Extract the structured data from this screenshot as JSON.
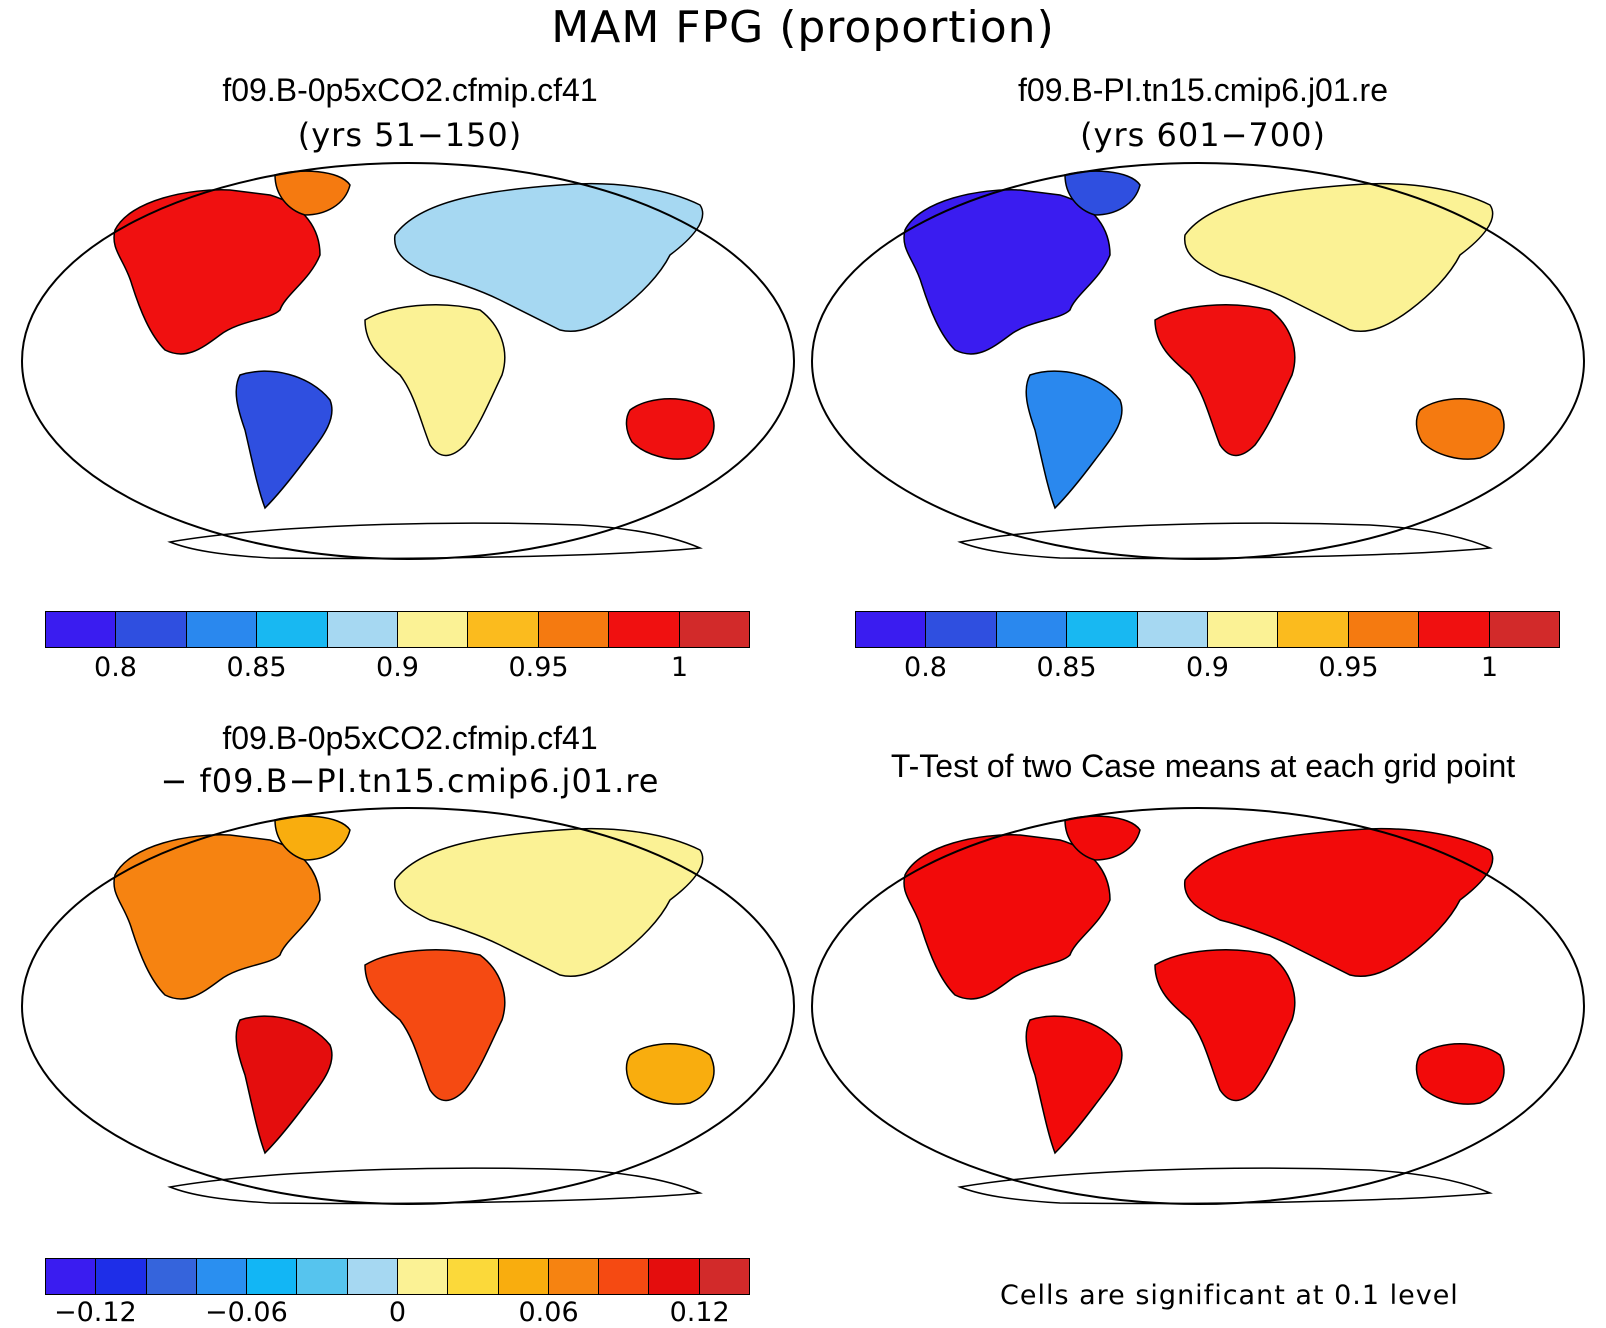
{
  "figure": {
    "title": "MAM FPG (proportion)"
  },
  "panels": {
    "top_left": {
      "title": "f09.B-0p5xCO2.cfmip.cf41",
      "subtitle": "(yrs 51−150)"
    },
    "top_right": {
      "title": "f09.B-PI.tn15.cmip6.j01.re",
      "subtitle": "(yrs 601−700)"
    },
    "bottom_left": {
      "title": "f09.B-0p5xCO2.cfmip.cf41",
      "subtitle": "− f09.B−PI.tn15.cmip6.j01.re"
    },
    "bottom_right": {
      "title": "T-Test of two Case means at each grid point",
      "note": "Cells are significant at 0.1 level"
    }
  },
  "colorbars": {
    "absolute": {
      "colors": [
        "#3a1cf0",
        "#2f4fe0",
        "#2a88ee",
        "#18b8f2",
        "#a6d8f2",
        "#fbf295",
        "#fbbb1e",
        "#f57a10",
        "#f01010",
        "#d22a2a"
      ],
      "tick_labels": [
        "0.8",
        "0.85",
        "0.9",
        "0.95",
        "1"
      ]
    },
    "difference": {
      "colors": [
        "#3a1cf0",
        "#1e2ee8",
        "#3564dc",
        "#2a8ff0",
        "#12b6f5",
        "#56c4ee",
        "#a6d8f2",
        "#fbf295",
        "#fbd93a",
        "#f9ad0e",
        "#f68311",
        "#f54a12",
        "#e40d0d",
        "#d22a2a"
      ],
      "tick_labels": [
        "−0.12",
        "−0.06",
        "0",
        "0.06",
        "0.12"
      ]
    }
  },
  "map_colors": {
    "top_left": [
      "#f01010",
      "#f57a10",
      "#2f4fe0",
      "#a6d8f2",
      "#fbf295",
      "#f01010"
    ],
    "top_right": [
      "#3a1cf0",
      "#2f4fe0",
      "#2a88ee",
      "#fbf295",
      "#f01010",
      "#f57a10"
    ],
    "bottom_left": [
      "#f68311",
      "#f9ad0e",
      "#e40d0d",
      "#fbf295",
      "#f54a12",
      "#f9ad0e"
    ],
    "bottom_right": [
      "#f20a0a",
      "#f20a0a",
      "#f20a0a",
      "#f20a0a",
      "#f20a0a",
      "#f20a0a"
    ]
  }
}
